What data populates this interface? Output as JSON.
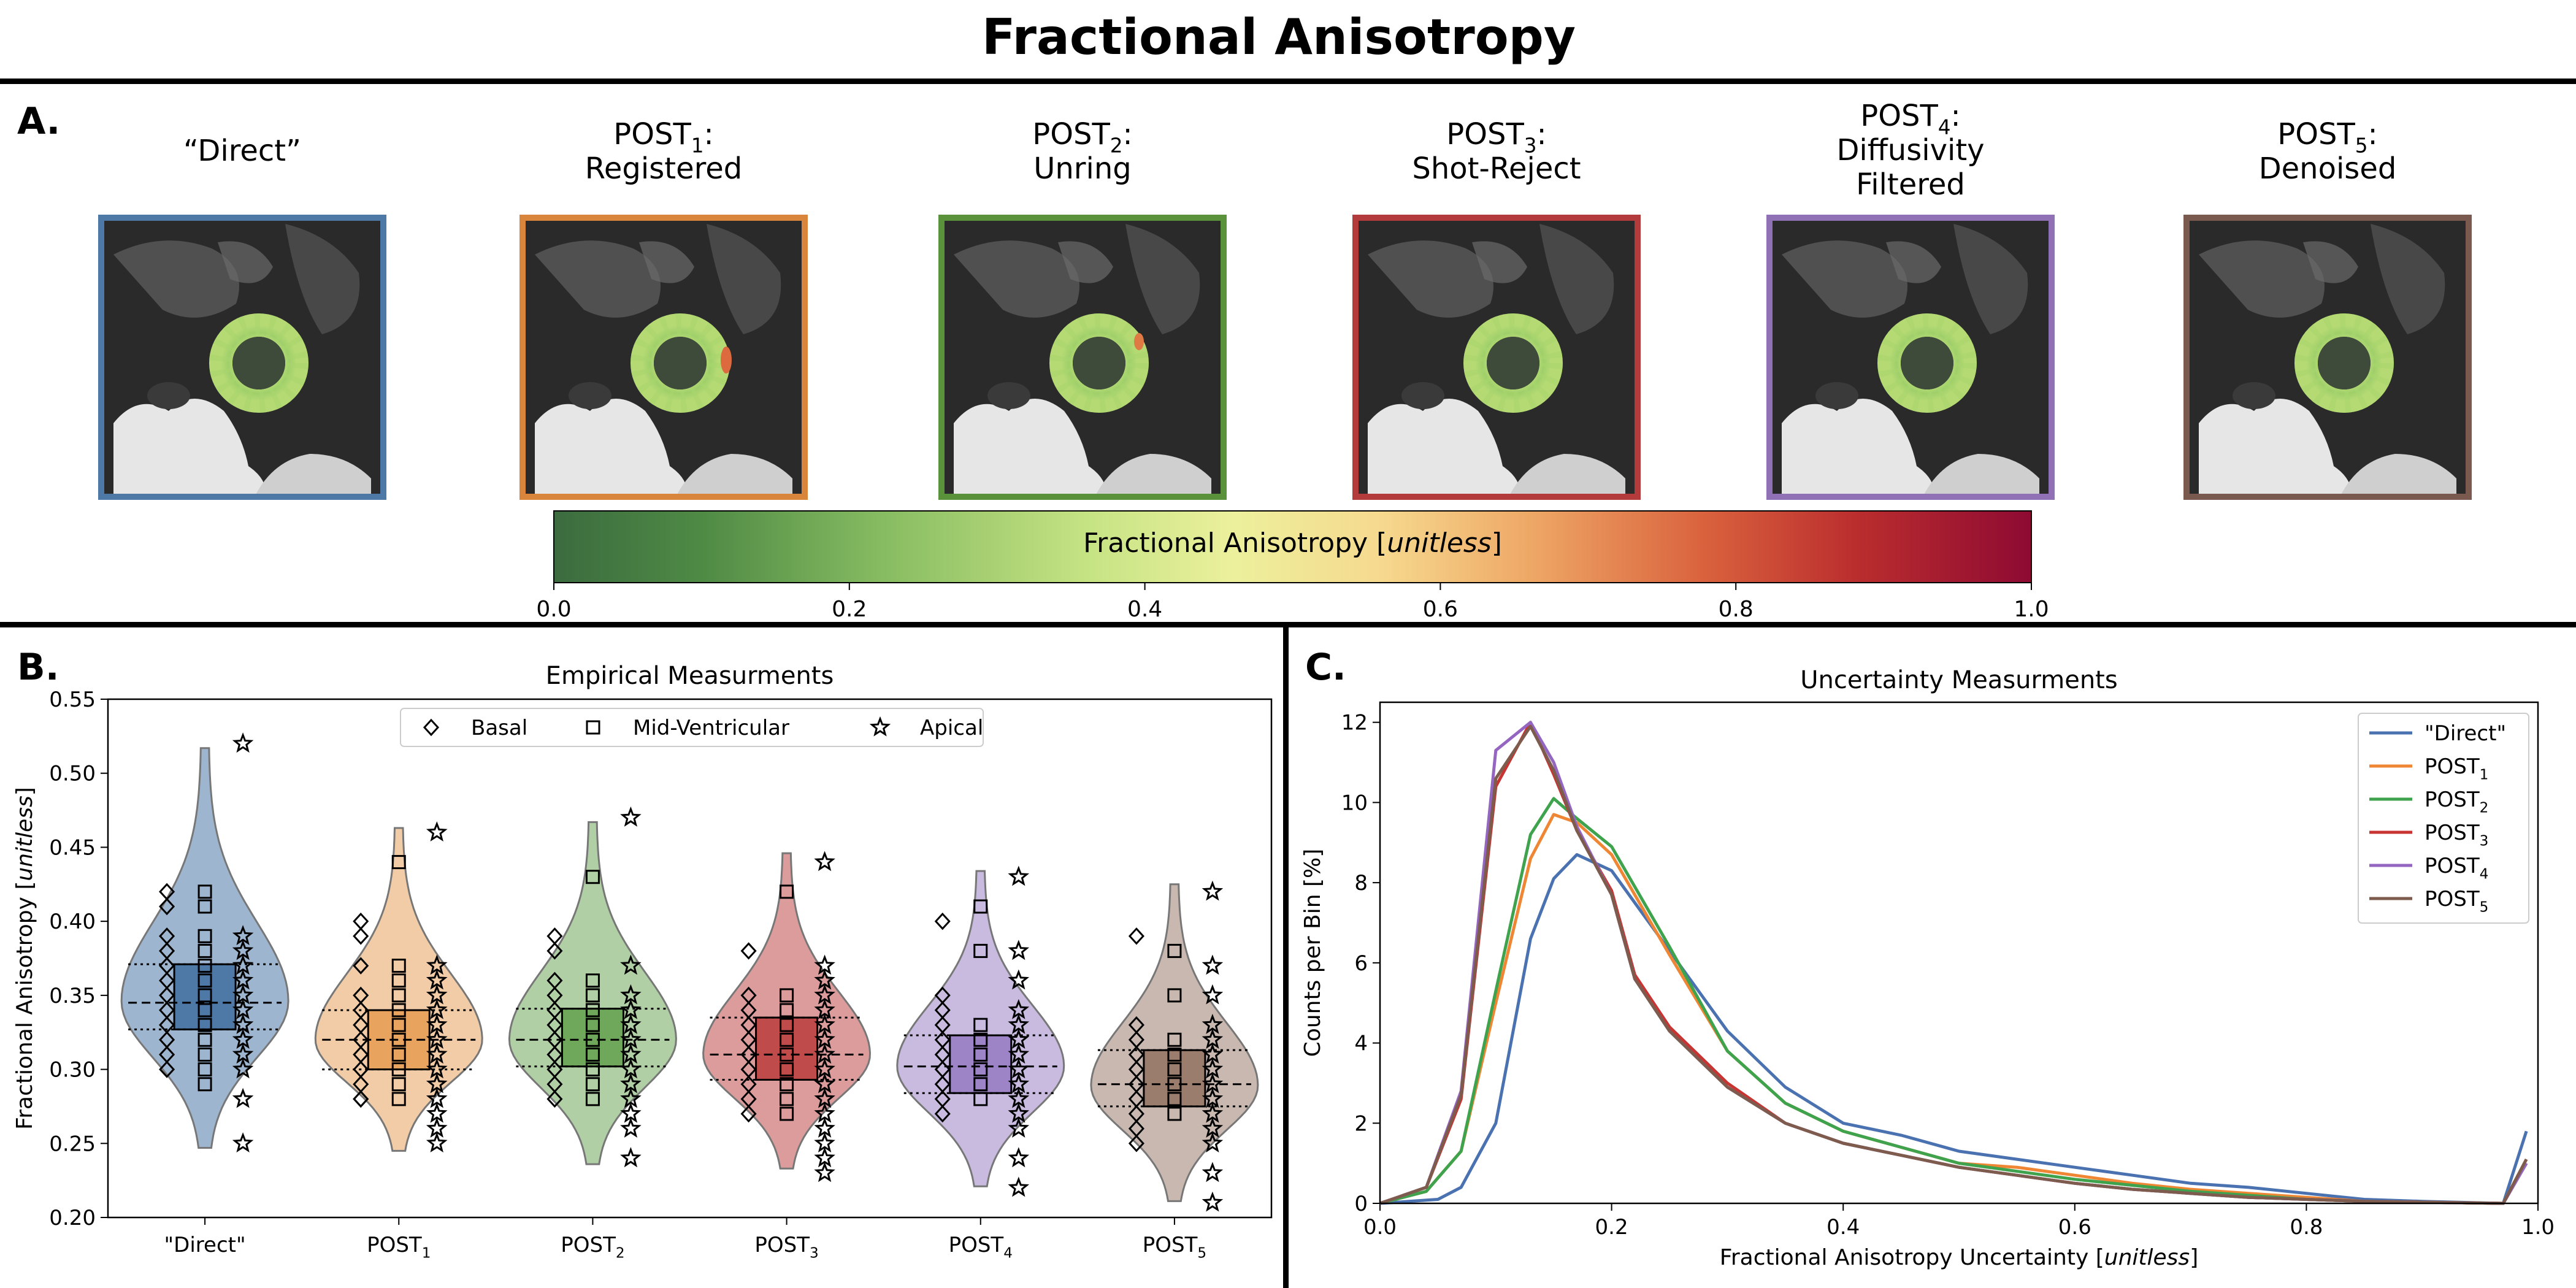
{
  "figure": {
    "title": "Fractional Anisotropy",
    "panel_a_label": "A.",
    "panel_b_label": "B.",
    "panel_c_label": "C."
  },
  "panel_a": {
    "images": [
      {
        "lines": [
          "“Direct”"
        ],
        "sub": [
          null
        ],
        "color": "#4e79a7"
      },
      {
        "lines": [
          "POST",
          "Registered"
        ],
        "sub": [
          "1",
          null
        ],
        "colon": [
          true,
          false
        ],
        "color": "#d9853b"
      },
      {
        "lines": [
          "POST",
          "Unring"
        ],
        "sub": [
          "2",
          null
        ],
        "colon": [
          true,
          false
        ],
        "color": "#59923b"
      },
      {
        "lines": [
          "POST",
          "Shot-Reject"
        ],
        "sub": [
          "3",
          null
        ],
        "colon": [
          true,
          false
        ],
        "color": "#b33b3b"
      },
      {
        "lines": [
          "POST",
          "Diffusivity",
          "Filtered"
        ],
        "sub": [
          "4",
          null,
          null
        ],
        "colon": [
          true,
          false,
          false
        ],
        "color": "#9171b6"
      },
      {
        "lines": [
          "POST",
          "Denoised"
        ],
        "sub": [
          "5",
          null
        ],
        "colon": [
          true,
          false
        ],
        "color": "#7a5a4f"
      }
    ],
    "colorbar": {
      "label_prefix": "Fractional Anisotropy [",
      "label_italic": "unitless",
      "label_suffix": "]",
      "ticks": [
        "0.0",
        "0.2",
        "0.4",
        "0.6",
        "0.8",
        "1.0"
      ],
      "range": [
        0.0,
        1.0
      ],
      "colormap": "RdYlGn_r"
    }
  },
  "chart_data": [
    {
      "type": "violin",
      "title": "Empirical Measurments",
      "ylabel_prefix": "Fractional Anisotropy [",
      "ylabel_italic": "unitless",
      "ylabel_suffix": "]",
      "ylim": [
        0.2,
        0.55
      ],
      "yticks": [
        "0.20",
        "0.25",
        "0.30",
        "0.35",
        "0.40",
        "0.45",
        "0.50",
        "0.55"
      ],
      "categories": [
        "\"Direct\"",
        "POST",
        "POST",
        "POST",
        "POST",
        "POST"
      ],
      "category_subs": [
        null,
        "1",
        "2",
        "3",
        "4",
        "5"
      ],
      "legend": {
        "position": "top-center",
        "entries": [
          {
            "label": "Basal",
            "marker": "diamond"
          },
          {
            "label": "Mid-Ventricular",
            "marker": "square"
          },
          {
            "label": "Apical",
            "marker": "star"
          }
        ]
      },
      "series": [
        {
          "color": "#4e79a7",
          "range": [
            0.247,
            0.517
          ],
          "peak": 0.346,
          "q1": 0.327,
          "median": 0.345,
          "q3": 0.371,
          "basal": [
            0.42,
            0.41,
            0.39,
            0.38,
            0.37,
            0.36,
            0.35,
            0.34,
            0.33,
            0.32,
            0.31,
            0.3
          ],
          "mid": [
            0.42,
            0.41,
            0.39,
            0.38,
            0.37,
            0.36,
            0.35,
            0.34,
            0.33,
            0.32,
            0.31,
            0.3,
            0.29
          ],
          "apical": [
            0.52,
            0.39,
            0.38,
            0.37,
            0.36,
            0.35,
            0.34,
            0.33,
            0.32,
            0.31,
            0.3,
            0.28,
            0.25
          ]
        },
        {
          "color": "#e8a35f",
          "range": [
            0.245,
            0.463
          ],
          "peak": 0.32,
          "q1": 0.3,
          "median": 0.32,
          "q3": 0.34,
          "basal": [
            0.4,
            0.39,
            0.37,
            0.35,
            0.34,
            0.33,
            0.32,
            0.31,
            0.3,
            0.29,
            0.28,
            0.28
          ],
          "mid": [
            0.44,
            0.37,
            0.36,
            0.35,
            0.34,
            0.33,
            0.32,
            0.31,
            0.3,
            0.29,
            0.28
          ],
          "apical": [
            0.46,
            0.37,
            0.36,
            0.35,
            0.34,
            0.33,
            0.32,
            0.31,
            0.3,
            0.29,
            0.28,
            0.27,
            0.26,
            0.25
          ]
        },
        {
          "color": "#6fa85a",
          "range": [
            0.236,
            0.467
          ],
          "peak": 0.32,
          "q1": 0.302,
          "median": 0.32,
          "q3": 0.341,
          "basal": [
            0.39,
            0.38,
            0.36,
            0.35,
            0.34,
            0.33,
            0.32,
            0.31,
            0.3,
            0.29,
            0.28
          ],
          "mid": [
            0.43,
            0.36,
            0.35,
            0.34,
            0.33,
            0.32,
            0.31,
            0.3,
            0.29,
            0.28
          ],
          "apical": [
            0.47,
            0.37,
            0.35,
            0.34,
            0.33,
            0.32,
            0.31,
            0.3,
            0.29,
            0.28,
            0.27,
            0.26,
            0.24
          ]
        },
        {
          "color": "#c04b4b",
          "range": [
            0.233,
            0.446
          ],
          "peak": 0.31,
          "q1": 0.293,
          "median": 0.31,
          "q3": 0.335,
          "basal": [
            0.38,
            0.35,
            0.34,
            0.33,
            0.32,
            0.31,
            0.3,
            0.29,
            0.28,
            0.27
          ],
          "mid": [
            0.42,
            0.35,
            0.34,
            0.33,
            0.32,
            0.31,
            0.3,
            0.29,
            0.28,
            0.27
          ],
          "apical": [
            0.44,
            0.37,
            0.36,
            0.35,
            0.34,
            0.33,
            0.32,
            0.31,
            0.3,
            0.29,
            0.28,
            0.27,
            0.26,
            0.25,
            0.24,
            0.23
          ]
        },
        {
          "color": "#9c84c6",
          "range": [
            0.221,
            0.434
          ],
          "peak": 0.302,
          "q1": 0.284,
          "median": 0.302,
          "q3": 0.323,
          "basal": [
            0.4,
            0.35,
            0.34,
            0.33,
            0.32,
            0.31,
            0.3,
            0.29,
            0.28,
            0.27
          ],
          "mid": [
            0.41,
            0.38,
            0.33,
            0.32,
            0.31,
            0.3,
            0.29,
            0.28
          ],
          "apical": [
            0.43,
            0.38,
            0.36,
            0.34,
            0.33,
            0.32,
            0.31,
            0.3,
            0.29,
            0.28,
            0.27,
            0.26,
            0.24,
            0.22
          ]
        },
        {
          "color": "#9b7d6e",
          "range": [
            0.211,
            0.425
          ],
          "peak": 0.289,
          "q1": 0.275,
          "median": 0.29,
          "q3": 0.313,
          "basal": [
            0.39,
            0.33,
            0.32,
            0.31,
            0.3,
            0.29,
            0.28,
            0.27,
            0.26,
            0.25
          ],
          "mid": [
            0.38,
            0.35,
            0.32,
            0.31,
            0.3,
            0.29,
            0.28,
            0.27
          ],
          "apical": [
            0.42,
            0.37,
            0.35,
            0.33,
            0.32,
            0.31,
            0.3,
            0.29,
            0.28,
            0.27,
            0.26,
            0.25,
            0.23,
            0.21
          ]
        }
      ]
    },
    {
      "type": "line",
      "title": "Uncertainty Measurments",
      "xlabel_prefix": "Fractional Anisotropy Uncertainty [",
      "xlabel_italic": "unitless",
      "xlabel_suffix": "]",
      "ylabel": "Counts per Bin [%]",
      "xlim": [
        0.0,
        1.0
      ],
      "ylim": [
        0,
        12.5
      ],
      "xticks": [
        "0.0",
        "0.2",
        "0.4",
        "0.6",
        "0.8",
        "1.0"
      ],
      "yticks": [
        "0",
        "2",
        "4",
        "6",
        "8",
        "10",
        "12"
      ],
      "legend": {
        "position": "top-right"
      },
      "series": [
        {
          "name": "\"Direct\"",
          "sub": null,
          "color": "#4a72b0",
          "points": [
            [
              0,
              0
            ],
            [
              0.05,
              0.1
            ],
            [
              0.07,
              0.4
            ],
            [
              0.1,
              2.0
            ],
            [
              0.13,
              6.6
            ],
            [
              0.15,
              8.1
            ],
            [
              0.17,
              8.7
            ],
            [
              0.2,
              8.3
            ],
            [
              0.25,
              6.3
            ],
            [
              0.3,
              4.3
            ],
            [
              0.35,
              2.9
            ],
            [
              0.4,
              2.0
            ],
            [
              0.45,
              1.7
            ],
            [
              0.5,
              1.3
            ],
            [
              0.55,
              1.1
            ],
            [
              0.6,
              0.9
            ],
            [
              0.65,
              0.7
            ],
            [
              0.7,
              0.5
            ],
            [
              0.75,
              0.4
            ],
            [
              0.8,
              0.25
            ],
            [
              0.85,
              0.1
            ],
            [
              0.9,
              0.05
            ],
            [
              0.97,
              0.0
            ],
            [
              0.99,
              1.8
            ]
          ]
        },
        {
          "name": "POST",
          "sub": "1",
          "color": "#ef8633",
          "points": [
            [
              0,
              0
            ],
            [
              0.04,
              0.3
            ],
            [
              0.07,
              1.3
            ],
            [
              0.1,
              5.0
            ],
            [
              0.13,
              8.6
            ],
            [
              0.15,
              9.7
            ],
            [
              0.17,
              9.5
            ],
            [
              0.2,
              8.7
            ],
            [
              0.25,
              6.2
            ],
            [
              0.3,
              3.8
            ],
            [
              0.35,
              2.5
            ],
            [
              0.4,
              1.8
            ],
            [
              0.45,
              1.4
            ],
            [
              0.5,
              1.0
            ],
            [
              0.55,
              0.9
            ],
            [
              0.6,
              0.7
            ],
            [
              0.65,
              0.5
            ],
            [
              0.7,
              0.35
            ],
            [
              0.75,
              0.25
            ],
            [
              0.8,
              0.15
            ],
            [
              0.85,
              0.05
            ],
            [
              0.97,
              0.0
            ],
            [
              0.99,
              1.1
            ]
          ]
        },
        {
          "name": "POST",
          "sub": "2",
          "color": "#3fa34d",
          "points": [
            [
              0,
              0
            ],
            [
              0.04,
              0.3
            ],
            [
              0.07,
              1.3
            ],
            [
              0.1,
              5.3
            ],
            [
              0.13,
              9.2
            ],
            [
              0.15,
              10.1
            ],
            [
              0.17,
              9.6
            ],
            [
              0.2,
              8.9
            ],
            [
              0.25,
              6.4
            ],
            [
              0.3,
              3.8
            ],
            [
              0.35,
              2.5
            ],
            [
              0.4,
              1.8
            ],
            [
              0.45,
              1.4
            ],
            [
              0.5,
              1.0
            ],
            [
              0.55,
              0.8
            ],
            [
              0.6,
              0.6
            ],
            [
              0.65,
              0.45
            ],
            [
              0.7,
              0.3
            ],
            [
              0.75,
              0.2
            ],
            [
              0.8,
              0.1
            ],
            [
              0.85,
              0.05
            ],
            [
              0.97,
              0.0
            ],
            [
              0.99,
              1.0
            ]
          ]
        },
        {
          "name": "POST",
          "sub": "3",
          "color": "#c83431",
          "points": [
            [
              0,
              0
            ],
            [
              0.04,
              0.4
            ],
            [
              0.07,
              2.6
            ],
            [
              0.1,
              10.4
            ],
            [
              0.13,
              12.0
            ],
            [
              0.15,
              10.7
            ],
            [
              0.17,
              9.3
            ],
            [
              0.2,
              7.8
            ],
            [
              0.22,
              5.7
            ],
            [
              0.25,
              4.4
            ],
            [
              0.3,
              3.0
            ],
            [
              0.35,
              2.0
            ],
            [
              0.4,
              1.5
            ],
            [
              0.45,
              1.2
            ],
            [
              0.5,
              0.9
            ],
            [
              0.55,
              0.7
            ],
            [
              0.6,
              0.5
            ],
            [
              0.65,
              0.35
            ],
            [
              0.7,
              0.25
            ],
            [
              0.75,
              0.15
            ],
            [
              0.8,
              0.1
            ],
            [
              0.85,
              0.05
            ],
            [
              0.97,
              0.0
            ],
            [
              0.99,
              1.0
            ]
          ]
        },
        {
          "name": "POST",
          "sub": "4",
          "color": "#9566c1",
          "points": [
            [
              0,
              0
            ],
            [
              0.04,
              0.4
            ],
            [
              0.07,
              2.8
            ],
            [
              0.1,
              11.3
            ],
            [
              0.13,
              12.0
            ],
            [
              0.15,
              11.0
            ],
            [
              0.17,
              9.4
            ],
            [
              0.2,
              7.7
            ],
            [
              0.22,
              5.6
            ],
            [
              0.25,
              4.3
            ],
            [
              0.3,
              2.9
            ],
            [
              0.35,
              2.0
            ],
            [
              0.4,
              1.5
            ],
            [
              0.45,
              1.2
            ],
            [
              0.5,
              0.9
            ],
            [
              0.55,
              0.7
            ],
            [
              0.6,
              0.5
            ],
            [
              0.65,
              0.35
            ],
            [
              0.7,
              0.25
            ],
            [
              0.75,
              0.15
            ],
            [
              0.8,
              0.1
            ],
            [
              0.85,
              0.05
            ],
            [
              0.97,
              0.0
            ],
            [
              0.99,
              1.0
            ]
          ]
        },
        {
          "name": "POST",
          "sub": "5",
          "color": "#7d5b4d",
          "points": [
            [
              0,
              0
            ],
            [
              0.04,
              0.4
            ],
            [
              0.07,
              2.7
            ],
            [
              0.1,
              10.6
            ],
            [
              0.13,
              11.9
            ],
            [
              0.15,
              10.8
            ],
            [
              0.17,
              9.3
            ],
            [
              0.2,
              7.7
            ],
            [
              0.22,
              5.6
            ],
            [
              0.25,
              4.3
            ],
            [
              0.3,
              2.9
            ],
            [
              0.35,
              2.0
            ],
            [
              0.4,
              1.5
            ],
            [
              0.45,
              1.2
            ],
            [
              0.5,
              0.9
            ],
            [
              0.55,
              0.7
            ],
            [
              0.6,
              0.5
            ],
            [
              0.65,
              0.35
            ],
            [
              0.7,
              0.25
            ],
            [
              0.75,
              0.15
            ],
            [
              0.8,
              0.1
            ],
            [
              0.85,
              0.05
            ],
            [
              0.97,
              0.0
            ],
            [
              0.99,
              1.1
            ]
          ]
        }
      ]
    }
  ]
}
